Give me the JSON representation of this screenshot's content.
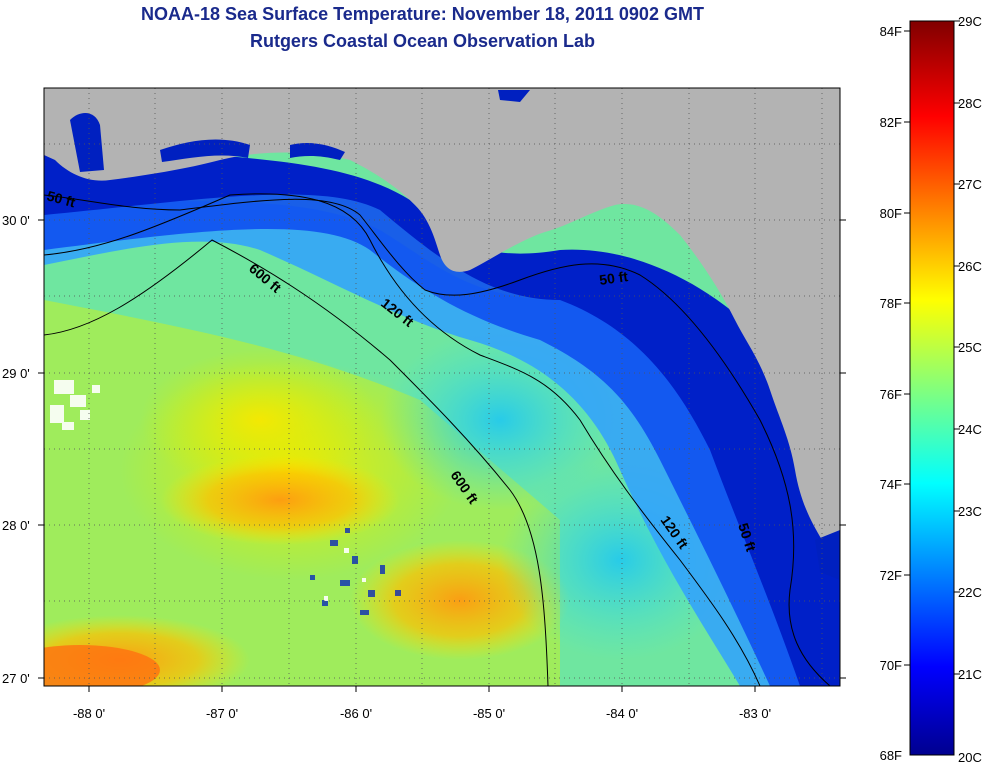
{
  "header": {
    "title": "NOAA-18 Sea Surface Temperature:  November 18, 2011 0902 GMT",
    "subtitle": "Rutgers Coastal Ocean Observation Lab"
  },
  "map": {
    "latitude_ticks": [
      "30 0'",
      "29 0'",
      "28 0'",
      "27 0'"
    ],
    "longitude_ticks": [
      "-88 0'",
      "-87 0'",
      "-86 0'",
      "-85 0'",
      "-84 0'",
      "-83 0'"
    ],
    "depth_contours": [
      {
        "label": "50 ft"
      },
      {
        "label": "120 ft"
      },
      {
        "label": "600 ft"
      }
    ],
    "contour_labels": [
      "50 ft",
      "600 ft",
      "120 ft",
      "50 ft",
      "600 ft",
      "120 ft",
      "50 ft"
    ],
    "land_color": "#b3b3b3"
  },
  "colorbar": {
    "fahrenheit_labels": [
      "84F",
      "82F",
      "80F",
      "78F",
      "76F",
      "74F",
      "72F",
      "70F",
      "68F"
    ],
    "celsius_labels": [
      "29C",
      "28C",
      "27C",
      "26C",
      "25C",
      "24C",
      "23C",
      "22C",
      "21C",
      "20C"
    ],
    "range_c": [
      20,
      29
    ],
    "colormap": "jet"
  }
}
